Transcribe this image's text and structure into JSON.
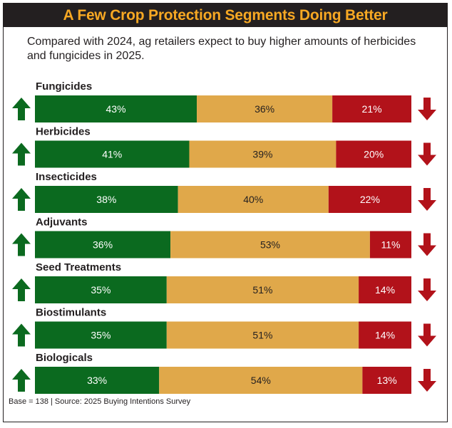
{
  "header": {
    "title": "A Few Crop Protection Segments Doing Better",
    "subtitle": "Compared with 2024, ag retailers expect to buy higher amounts of herbicides and fungicides in 2025."
  },
  "footer": {
    "note": "Base = 138 | Source: 2025 Buying Intentions Survey"
  },
  "colors": {
    "increase": "#0b6a1f",
    "same": "#e0a84a",
    "decrease": "#b2121a",
    "title_bg": "#231f20",
    "title_text": "#f7a823"
  },
  "chart_data": {
    "type": "bar",
    "stacked": true,
    "orientation": "horizontal",
    "title": "A Few Crop Protection Segments Doing Better",
    "categories": [
      "Fungicides",
      "Herbicides",
      "Insecticides",
      "Adjuvants",
      "Seed Treatments",
      "Biostimulants",
      "Biologicals"
    ],
    "series": [
      {
        "values": [
          43,
          41,
          38,
          36,
          35,
          35,
          33
        ],
        "color": "#0b6a1f",
        "icon": "up-arrow-icon"
      },
      {
        "values": [
          36,
          39,
          40,
          53,
          51,
          51,
          54
        ],
        "color": "#e0a84a"
      },
      {
        "values": [
          21,
          20,
          22,
          11,
          14,
          14,
          13
        ],
        "color": "#b2121a",
        "icon": "down-arrow-icon"
      }
    ],
    "unit": "%",
    "xlim": [
      0,
      100
    ],
    "grid": false
  }
}
